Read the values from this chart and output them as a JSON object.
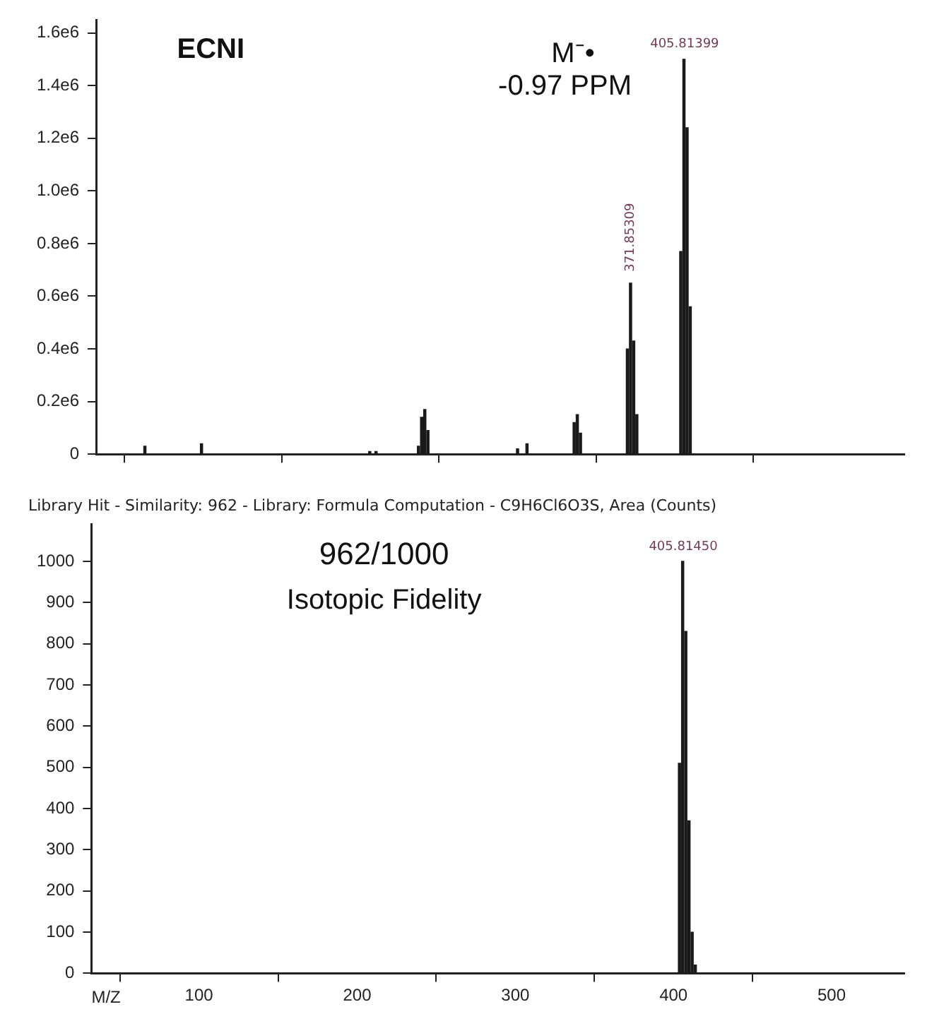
{
  "chart_data": [
    {
      "type": "bar",
      "x": [
        63,
        99,
        206,
        210,
        237,
        239,
        241,
        243,
        300,
        306,
        336,
        338,
        340,
        369.85,
        371.85309,
        373.85,
        375.85,
        403.8,
        405.81399,
        407.8,
        409.8
      ],
      "values": [
        30000,
        40000,
        10000,
        10000,
        30000,
        140000,
        170000,
        90000,
        20000,
        40000,
        120000,
        150000,
        80000,
        400000,
        650000,
        430000,
        150000,
        770000,
        1500000,
        1240000,
        560000
      ],
      "color": "#1a1a1a",
      "xlim": [
        32,
        546
      ],
      "xticks": [
        {
          "value": 100,
          "label": null
        },
        {
          "value": 200,
          "label": null
        },
        {
          "value": 300,
          "label": null
        },
        {
          "value": 400,
          "label": null
        },
        {
          "value": 500,
          "label": null
        }
      ],
      "ylim": [
        0,
        1650000
      ],
      "yticks": [
        0,
        {
          "value": 200000,
          "label": "0.2e6"
        },
        {
          "value": 400000,
          "label": "0.4e6"
        },
        {
          "value": 600000,
          "label": "0.6e6"
        },
        {
          "value": 800000,
          "label": "0.8e6"
        },
        {
          "value": 1000000,
          "label": "1.0e6"
        },
        {
          "value": 1200000,
          "label": "1.2e6"
        },
        {
          "value": 1400000,
          "label": "1.4e6"
        },
        {
          "value": 1600000,
          "label": "1.6e6"
        }
      ],
      "tick_labels": "y",
      "grid": false,
      "legend": false,
      "annotations": [
        "ECNI",
        "M⁻•",
        "-0.97 PPM",
        "405.81399",
        "371.85309"
      ]
    },
    {
      "type": "bar",
      "title": "Library Hit - Similarity: 962 - Library: Formula Computation - C9H6Cl6O3S, Area (Counts)",
      "xlabel": "M/Z",
      "x": [
        403.8,
        405.8145,
        407.8,
        409.8,
        411.8,
        413.8
      ],
      "values": [
        510,
        1000,
        830,
        370,
        100,
        20
      ],
      "color": "#1a1a1a",
      "xlim": [
        32,
        546
      ],
      "xticks": [
        100,
        200,
        300,
        400,
        500
      ],
      "ylim": [
        0,
        1090
      ],
      "yticks": [
        0,
        100,
        200,
        300,
        400,
        500,
        600,
        700,
        800,
        900,
        1000
      ],
      "grid": false,
      "legend": false,
      "annotations": [
        "962/1000",
        "Isotopic Fidelity",
        "405.81450"
      ]
    }
  ]
}
